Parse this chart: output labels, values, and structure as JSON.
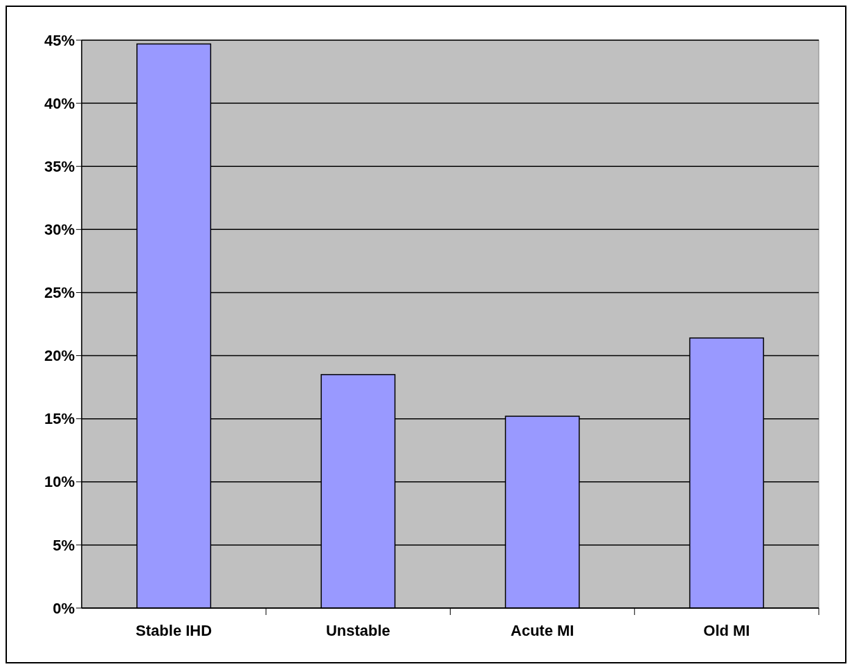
{
  "chart_data": {
    "type": "bar",
    "categories": [
      "Stable IHD",
      "Unstable",
      "Acute MI",
      "Old MI"
    ],
    "values": [
      44.7,
      18.5,
      15.2,
      21.4
    ],
    "color": "#9999ff",
    "ylim": [
      0,
      45
    ],
    "yticks": [
      {
        "value": 0,
        "label": "0%"
      },
      {
        "value": 5,
        "label": "5%"
      },
      {
        "value": 10,
        "label": "10%"
      },
      {
        "value": 15,
        "label": "15%"
      },
      {
        "value": 20,
        "label": "20%"
      },
      {
        "value": 25,
        "label": "25%"
      },
      {
        "value": 30,
        "label": "30%"
      },
      {
        "value": 35,
        "label": "35%"
      },
      {
        "value": 40,
        "label": "40%"
      },
      {
        "value": 45,
        "label": "45%"
      }
    ],
    "grid": "y"
  }
}
